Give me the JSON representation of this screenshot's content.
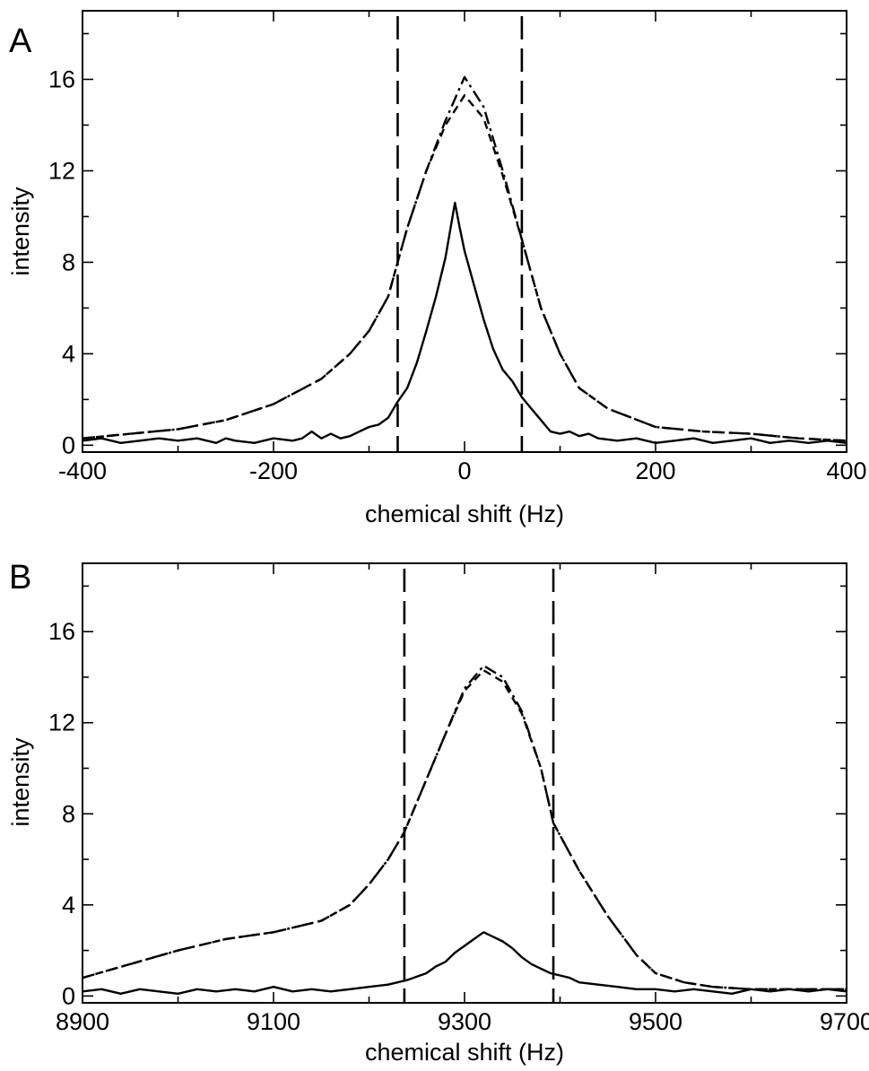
{
  "chart_data": [
    {
      "panel_label": "A",
      "type": "line",
      "title": "",
      "xlabel": "chemical shift (Hz)",
      "ylabel": "intensity",
      "xlim": [
        -400,
        400
      ],
      "ylim": [
        -0.3,
        19
      ],
      "x_ticks_major": [
        -400,
        -200,
        0,
        200,
        400
      ],
      "x_ticks_minor": [
        -300,
        -100,
        100,
        300
      ],
      "y_ticks_major": [
        0,
        4,
        8,
        12,
        16
      ],
      "y_ticks_minor": [
        2,
        6,
        10,
        14,
        18
      ],
      "grid": false,
      "vertical_markers": [
        -70,
        60
      ],
      "series": [
        {
          "style": "solid",
          "color": "#000000",
          "x": [
            -400,
            -380,
            -360,
            -340,
            -320,
            -300,
            -280,
            -260,
            -250,
            -240,
            -220,
            -200,
            -180,
            -170,
            -160,
            -150,
            -140,
            -130,
            -120,
            -110,
            -100,
            -90,
            -80,
            -70,
            -60,
            -50,
            -40,
            -30,
            -20,
            -10,
            -5,
            0,
            10,
            20,
            30,
            40,
            50,
            60,
            70,
            80,
            90,
            100,
            110,
            120,
            130,
            140,
            160,
            180,
            200,
            220,
            240,
            260,
            280,
            300,
            320,
            340,
            360,
            380,
            400
          ],
          "y": [
            0.2,
            0.3,
            0.1,
            0.2,
            0.3,
            0.2,
            0.3,
            0.1,
            0.3,
            0.2,
            0.1,
            0.3,
            0.2,
            0.3,
            0.6,
            0.3,
            0.5,
            0.3,
            0.4,
            0.6,
            0.8,
            0.9,
            1.2,
            1.9,
            2.5,
            3.6,
            5.0,
            6.5,
            8.2,
            10.6,
            9.5,
            8.5,
            7.0,
            5.5,
            4.2,
            3.3,
            2.8,
            2.1,
            1.6,
            1.1,
            0.6,
            0.5,
            0.6,
            0.4,
            0.5,
            0.3,
            0.2,
            0.3,
            0.1,
            0.2,
            0.3,
            0.1,
            0.2,
            0.3,
            0.1,
            0.2,
            0.1,
            0.2,
            0.1
          ]
        },
        {
          "style": "dash-dot",
          "color": "#000000",
          "x": [
            -400,
            -350,
            -300,
            -250,
            -200,
            -150,
            -120,
            -100,
            -80,
            -70,
            -60,
            -40,
            -20,
            0,
            20,
            40,
            60,
            70,
            80,
            100,
            120,
            150,
            200,
            250,
            300,
            350,
            400
          ],
          "y": [
            0.3,
            0.5,
            0.7,
            1.1,
            1.8,
            2.9,
            4.0,
            5.0,
            6.5,
            8.0,
            9.5,
            12.0,
            14.2,
            16.1,
            14.8,
            12.0,
            9.0,
            7.5,
            6.0,
            4.0,
            2.5,
            1.6,
            0.8,
            0.6,
            0.5,
            0.3,
            0.2
          ]
        },
        {
          "style": "dashed",
          "color": "#000000",
          "x": [
            -400,
            -350,
            -300,
            -250,
            -200,
            -150,
            -120,
            -100,
            -80,
            -70,
            -60,
            -40,
            -20,
            0,
            20,
            40,
            60,
            70,
            80,
            100,
            120,
            150,
            200,
            250,
            300,
            350,
            400
          ],
          "y": [
            0.3,
            0.5,
            0.7,
            1.1,
            1.8,
            2.9,
            4.0,
            5.0,
            6.5,
            8.0,
            9.5,
            12.0,
            14.0,
            15.3,
            14.3,
            11.8,
            9.0,
            7.5,
            6.0,
            4.0,
            2.5,
            1.6,
            0.8,
            0.6,
            0.5,
            0.3,
            0.2
          ]
        }
      ]
    },
    {
      "panel_label": "B",
      "type": "line",
      "title": "",
      "xlabel": "chemical shift (Hz)",
      "ylabel": "intensity",
      "xlim": [
        8900,
        9700
      ],
      "ylim": [
        -0.3,
        19
      ],
      "x_ticks_major": [
        8900,
        9100,
        9300,
        9500,
        9700
      ],
      "x_ticks_minor": [
        9000,
        9200,
        9400,
        9600
      ],
      "y_ticks_major": [
        0,
        4,
        8,
        12,
        16
      ],
      "y_ticks_minor": [
        2,
        6,
        10,
        14,
        18
      ],
      "grid": false,
      "vertical_markers": [
        9237,
        9393
      ],
      "series": [
        {
          "style": "solid",
          "color": "#000000",
          "x": [
            8900,
            8920,
            8940,
            8960,
            8980,
            9000,
            9020,
            9040,
            9060,
            9080,
            9100,
            9120,
            9140,
            9160,
            9180,
            9200,
            9220,
            9240,
            9260,
            9270,
            9280,
            9290,
            9300,
            9310,
            9320,
            9330,
            9340,
            9350,
            9360,
            9370,
            9380,
            9390,
            9400,
            9410,
            9420,
            9440,
            9460,
            9480,
            9500,
            9520,
            9540,
            9560,
            9580,
            9600,
            9620,
            9640,
            9660,
            9680,
            9700
          ],
          "y": [
            0.2,
            0.3,
            0.1,
            0.3,
            0.2,
            0.1,
            0.3,
            0.2,
            0.3,
            0.2,
            0.4,
            0.2,
            0.3,
            0.2,
            0.3,
            0.4,
            0.5,
            0.7,
            1.0,
            1.3,
            1.5,
            1.9,
            2.2,
            2.5,
            2.8,
            2.6,
            2.4,
            2.1,
            1.7,
            1.4,
            1.2,
            1.0,
            0.9,
            0.8,
            0.6,
            0.5,
            0.4,
            0.3,
            0.3,
            0.2,
            0.3,
            0.2,
            0.1,
            0.3,
            0.2,
            0.3,
            0.2,
            0.3,
            0.2
          ]
        },
        {
          "style": "dash-dot",
          "color": "#000000",
          "x": [
            8900,
            8950,
            9000,
            9050,
            9100,
            9150,
            9180,
            9200,
            9220,
            9237,
            9260,
            9280,
            9300,
            9320,
            9340,
            9360,
            9380,
            9393,
            9420,
            9450,
            9480,
            9500,
            9530,
            9560,
            9600,
            9650,
            9700
          ],
          "y": [
            0.8,
            1.4,
            2.0,
            2.5,
            2.8,
            3.3,
            4.0,
            4.9,
            6.0,
            7.2,
            9.5,
            11.5,
            13.5,
            14.5,
            14.0,
            12.5,
            10.0,
            7.6,
            5.5,
            3.5,
            1.8,
            1.0,
            0.6,
            0.4,
            0.3,
            0.3,
            0.3
          ]
        },
        {
          "style": "dashed",
          "color": "#000000",
          "x": [
            8900,
            8950,
            9000,
            9050,
            9100,
            9150,
            9180,
            9200,
            9220,
            9237,
            9260,
            9280,
            9300,
            9320,
            9340,
            9360,
            9380,
            9393,
            9420,
            9450,
            9480,
            9500,
            9530,
            9560,
            9600,
            9650,
            9700
          ],
          "y": [
            0.8,
            1.4,
            2.0,
            2.5,
            2.8,
            3.3,
            4.0,
            4.9,
            6.0,
            7.2,
            9.5,
            11.5,
            13.4,
            14.3,
            13.8,
            12.4,
            10.0,
            7.6,
            5.5,
            3.5,
            1.8,
            1.0,
            0.6,
            0.4,
            0.3,
            0.3,
            0.3
          ]
        }
      ]
    }
  ]
}
